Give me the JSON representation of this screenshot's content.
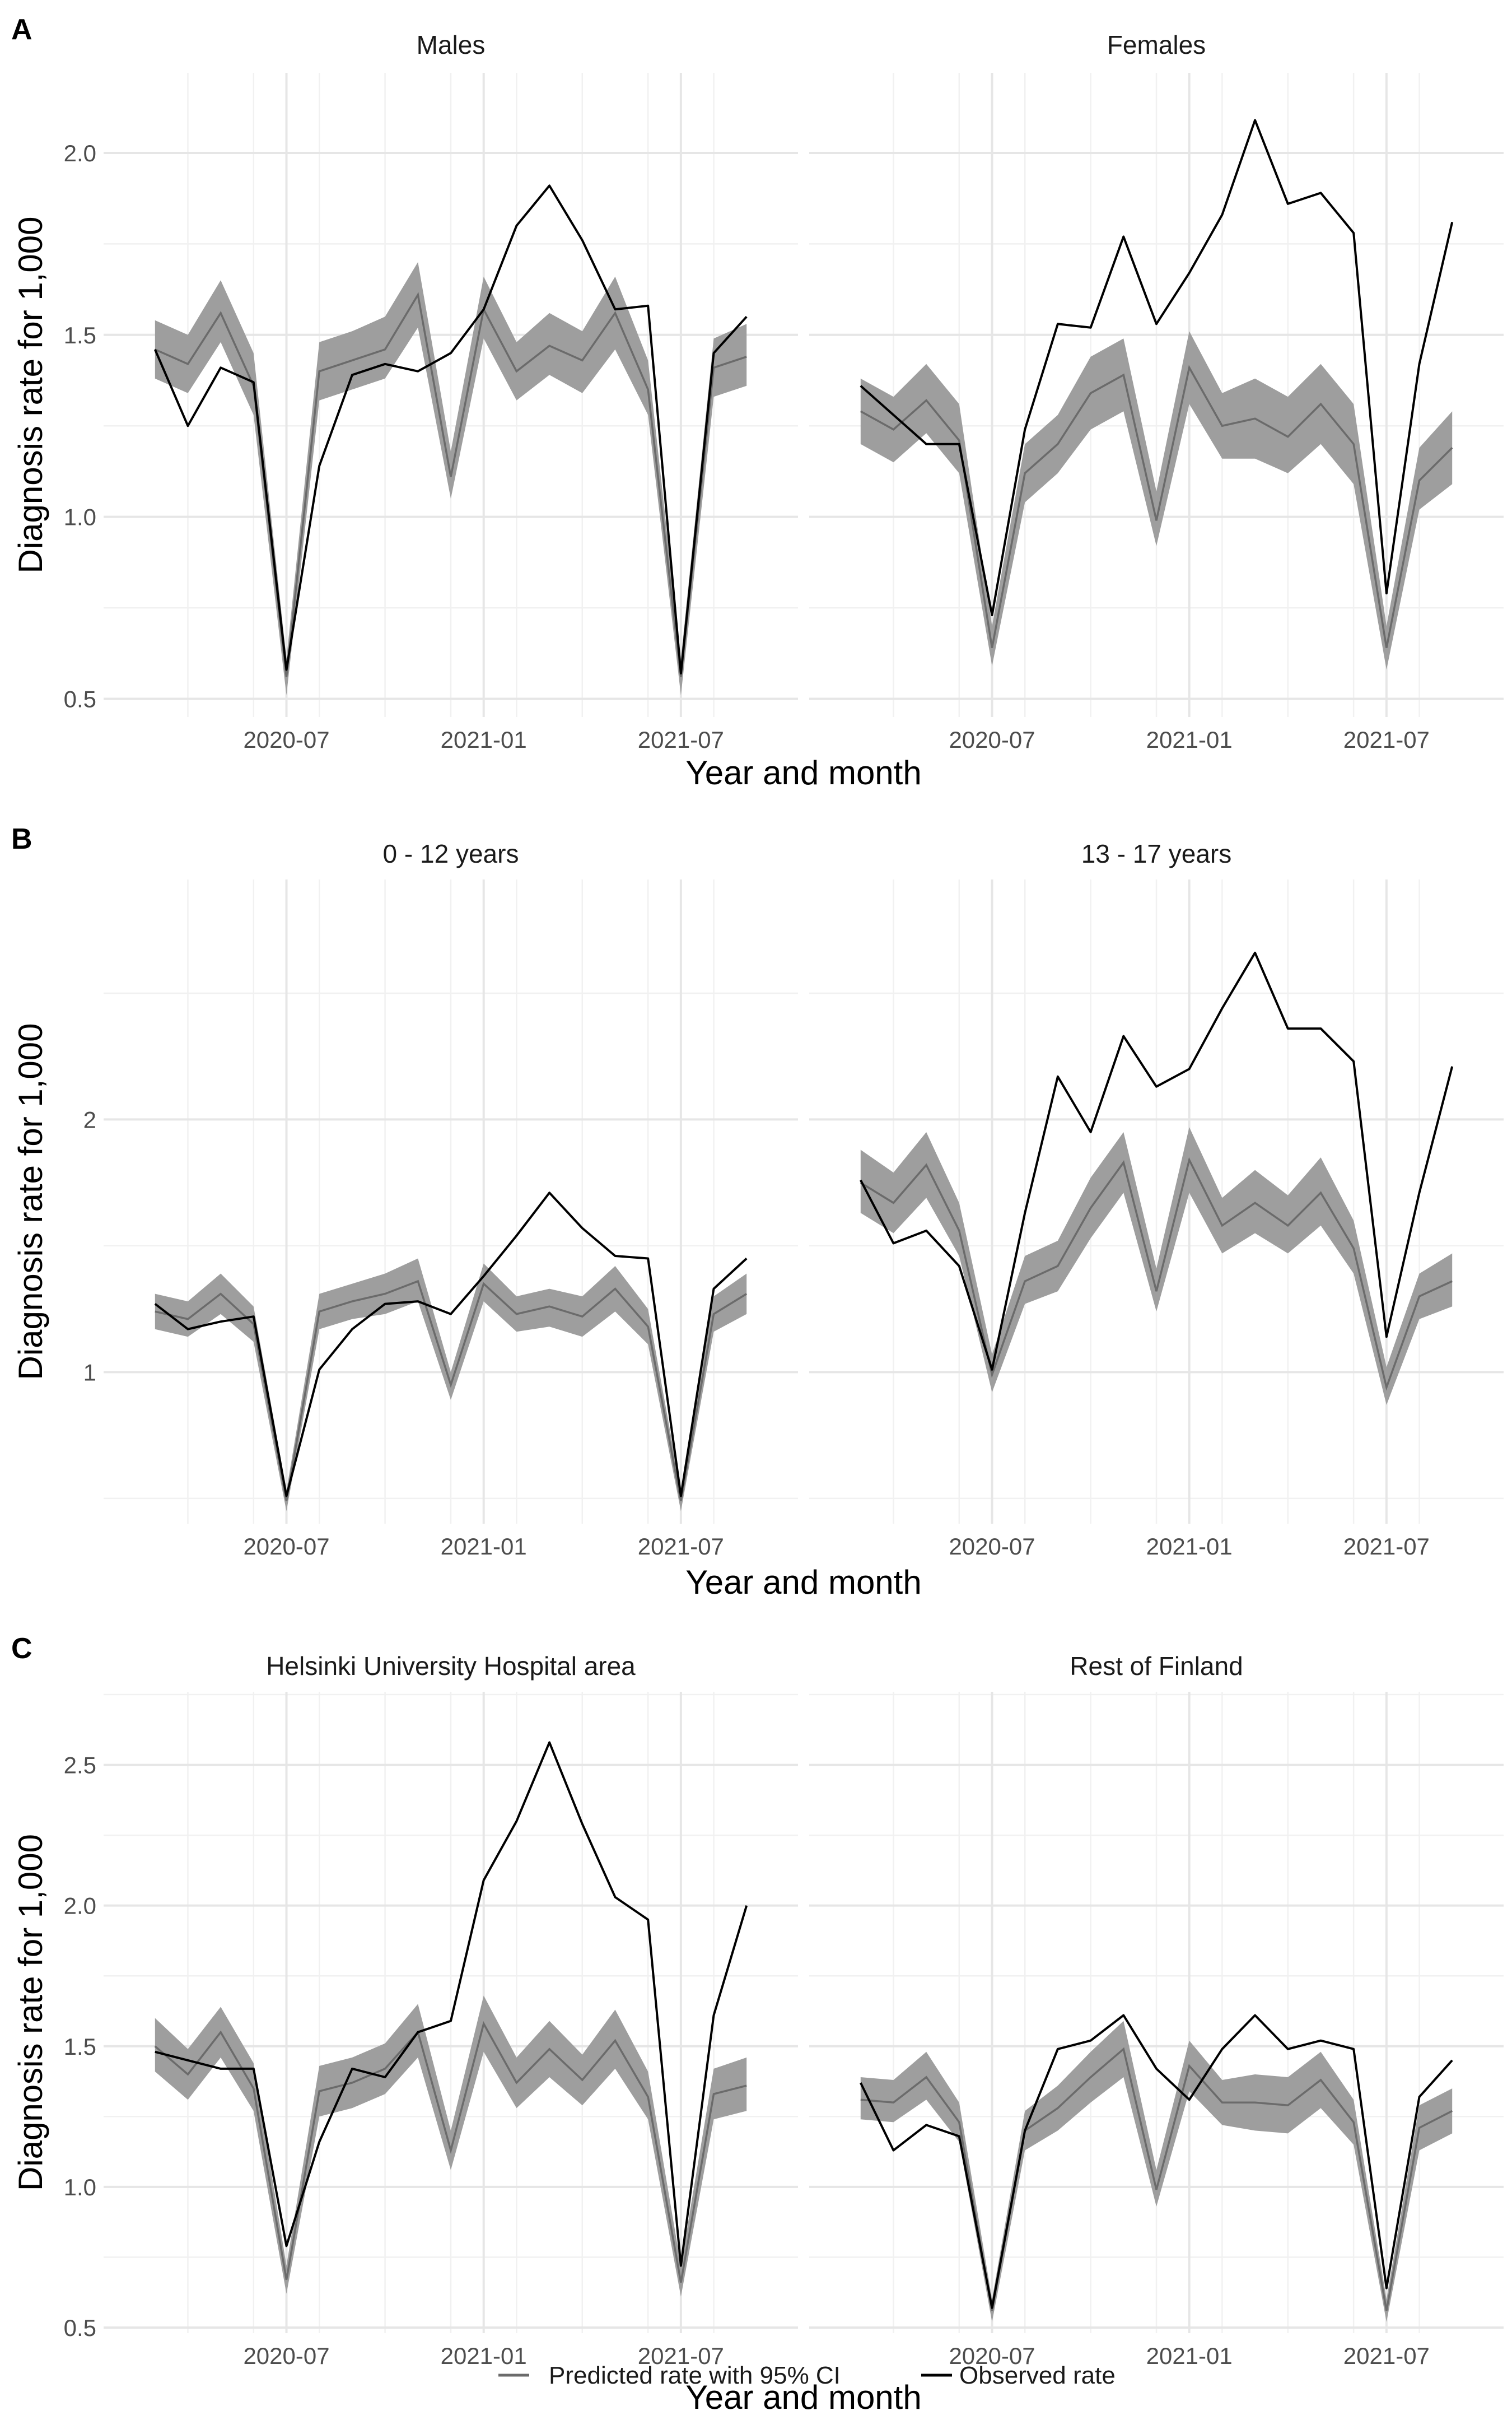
{
  "legend": {
    "predicted": "Predicted rate with 95% CI",
    "observed": "Observed rate"
  },
  "colors": {
    "predicted_line": "#6b6b6b",
    "ci_band": "#9e9e9e",
    "observed_line": "#000000"
  },
  "chart_data": [
    {
      "type": "line",
      "panel": "A",
      "xlabel": "Year and month",
      "ylabel": "Diagnosis rate for 1,000",
      "x_ticks": [
        "2020-07",
        "2021-01",
        "2021-07"
      ],
      "y_ticks": [
        0.5,
        1.0,
        1.5,
        2.0
      ],
      "y_tick_labels": [
        "0.5",
        "1.0",
        "1.5",
        "2.0"
      ],
      "ylim": [
        0.45,
        2.22
      ],
      "x": [
        "2020-03",
        "2020-04",
        "2020-05",
        "2020-06",
        "2020-07",
        "2020-08",
        "2020-09",
        "2020-10",
        "2020-11",
        "2020-12",
        "2021-01",
        "2021-02",
        "2021-03",
        "2021-04",
        "2021-05",
        "2021-06",
        "2021-07",
        "2021-08",
        "2021-09"
      ],
      "facets": [
        {
          "title": "Males",
          "predicted": [
            1.46,
            1.42,
            1.56,
            1.36,
            0.56,
            1.4,
            1.43,
            1.46,
            1.61,
            1.11,
            1.57,
            1.4,
            1.47,
            1.43,
            1.56,
            1.35,
            0.56,
            1.41,
            1.44
          ],
          "ci_lower": [
            1.38,
            1.34,
            1.48,
            1.28,
            0.51,
            1.32,
            1.35,
            1.38,
            1.52,
            1.05,
            1.49,
            1.32,
            1.39,
            1.34,
            1.46,
            1.28,
            0.51,
            1.33,
            1.36
          ],
          "ci_upper": [
            1.54,
            1.5,
            1.65,
            1.45,
            0.61,
            1.48,
            1.51,
            1.55,
            1.7,
            1.18,
            1.66,
            1.48,
            1.56,
            1.51,
            1.66,
            1.43,
            0.61,
            1.49,
            1.53
          ],
          "observed": [
            1.46,
            1.25,
            1.41,
            1.37,
            0.58,
            1.14,
            1.39,
            1.42,
            1.4,
            1.45,
            1.57,
            1.8,
            1.91,
            1.76,
            1.57,
            1.58,
            0.57,
            1.45,
            1.55
          ]
        },
        {
          "title": "Females",
          "predicted": [
            1.29,
            1.24,
            1.32,
            1.21,
            0.64,
            1.12,
            1.2,
            1.34,
            1.39,
            0.99,
            1.41,
            1.25,
            1.27,
            1.22,
            1.31,
            1.2,
            0.64,
            1.1,
            1.19
          ],
          "ci_lower": [
            1.2,
            1.15,
            1.23,
            1.12,
            0.59,
            1.04,
            1.12,
            1.24,
            1.29,
            0.92,
            1.31,
            1.16,
            1.16,
            1.12,
            1.2,
            1.09,
            0.58,
            1.02,
            1.09
          ],
          "ci_upper": [
            1.38,
            1.33,
            1.42,
            1.31,
            0.7,
            1.2,
            1.28,
            1.44,
            1.49,
            1.07,
            1.51,
            1.34,
            1.38,
            1.33,
            1.42,
            1.31,
            0.7,
            1.19,
            1.29
          ],
          "observed": [
            1.36,
            1.28,
            1.2,
            1.2,
            0.73,
            1.24,
            1.53,
            1.52,
            1.77,
            1.53,
            1.67,
            1.83,
            2.09,
            1.86,
            1.89,
            1.78,
            0.79,
            1.42,
            1.81
          ]
        }
      ]
    },
    {
      "type": "line",
      "panel": "B",
      "xlabel": "Year and month",
      "ylabel": "Diagnosis rate for 1,000",
      "x_ticks": [
        "2020-07",
        "2021-01",
        "2021-07"
      ],
      "y_ticks": [
        1,
        2
      ],
      "y_tick_labels": [
        "1",
        "2"
      ],
      "ylim": [
        0.4,
        2.95
      ],
      "x": [
        "2020-03",
        "2020-04",
        "2020-05",
        "2020-06",
        "2020-07",
        "2020-08",
        "2020-09",
        "2020-10",
        "2020-11",
        "2020-12",
        "2021-01",
        "2021-02",
        "2021-03",
        "2021-04",
        "2021-05",
        "2021-06",
        "2021-07",
        "2021-08",
        "2021-09"
      ],
      "facets": [
        {
          "title": "0 - 12 years",
          "predicted": [
            1.24,
            1.21,
            1.31,
            1.19,
            0.49,
            1.24,
            1.28,
            1.31,
            1.36,
            0.95,
            1.35,
            1.23,
            1.26,
            1.22,
            1.33,
            1.18,
            0.49,
            1.23,
            1.31
          ],
          "ci_lower": [
            1.17,
            1.14,
            1.23,
            1.12,
            0.45,
            1.17,
            1.21,
            1.23,
            1.28,
            0.89,
            1.28,
            1.16,
            1.18,
            1.14,
            1.24,
            1.11,
            0.45,
            1.16,
            1.23
          ],
          "ci_upper": [
            1.31,
            1.28,
            1.39,
            1.26,
            0.53,
            1.31,
            1.35,
            1.39,
            1.45,
            1.0,
            1.43,
            1.3,
            1.33,
            1.3,
            1.42,
            1.25,
            0.53,
            1.3,
            1.39
          ],
          "observed": [
            1.27,
            1.17,
            1.2,
            1.22,
            0.51,
            1.01,
            1.17,
            1.27,
            1.28,
            1.23,
            1.38,
            1.54,
            1.71,
            1.57,
            1.46,
            1.45,
            0.51,
            1.33,
            1.45
          ]
        },
        {
          "title": "13 - 17 years",
          "predicted": [
            1.75,
            1.67,
            1.82,
            1.56,
            0.99,
            1.36,
            1.42,
            1.65,
            1.83,
            1.32,
            1.84,
            1.58,
            1.67,
            1.58,
            1.71,
            1.49,
            0.94,
            1.3,
            1.36
          ],
          "ci_lower": [
            1.63,
            1.55,
            1.69,
            1.46,
            0.92,
            1.27,
            1.32,
            1.53,
            1.71,
            1.24,
            1.71,
            1.47,
            1.55,
            1.47,
            1.58,
            1.39,
            0.87,
            1.21,
            1.26
          ],
          "ci_upper": [
            1.88,
            1.79,
            1.95,
            1.67,
            1.07,
            1.46,
            1.52,
            1.77,
            1.95,
            1.41,
            1.97,
            1.69,
            1.8,
            1.7,
            1.85,
            1.6,
            1.02,
            1.39,
            1.47
          ],
          "observed": [
            1.76,
            1.51,
            1.56,
            1.42,
            1.01,
            1.63,
            2.17,
            1.95,
            2.33,
            2.13,
            2.2,
            2.44,
            2.66,
            2.36,
            2.36,
            2.23,
            1.14,
            1.71,
            2.21
          ]
        }
      ]
    },
    {
      "type": "line",
      "panel": "C",
      "xlabel": "Year and month",
      "ylabel": "Diagnosis rate for 1,000",
      "x_ticks": [
        "2020-07",
        "2021-01",
        "2021-07"
      ],
      "y_ticks": [
        0.5,
        1.0,
        1.5,
        2.0,
        2.5
      ],
      "y_tick_labels": [
        "0.5",
        "1.0",
        "1.5",
        "2.0",
        "2.5"
      ],
      "ylim": [
        0.48,
        2.76
      ],
      "x": [
        "2020-03",
        "2020-04",
        "2020-05",
        "2020-06",
        "2020-07",
        "2020-08",
        "2020-09",
        "2020-10",
        "2020-11",
        "2020-12",
        "2021-01",
        "2021-02",
        "2021-03",
        "2021-04",
        "2021-05",
        "2021-06",
        "2021-07",
        "2021-08",
        "2021-09"
      ],
      "facets": [
        {
          "title": "Helsinki University Hospital area",
          "predicted": [
            1.5,
            1.4,
            1.55,
            1.35,
            0.67,
            1.34,
            1.37,
            1.42,
            1.55,
            1.13,
            1.58,
            1.37,
            1.49,
            1.38,
            1.52,
            1.32,
            0.66,
            1.33,
            1.36
          ],
          "ci_lower": [
            1.41,
            1.31,
            1.46,
            1.27,
            0.62,
            1.25,
            1.28,
            1.33,
            1.46,
            1.06,
            1.48,
            1.28,
            1.39,
            1.29,
            1.42,
            1.24,
            0.61,
            1.24,
            1.27
          ],
          "ci_upper": [
            1.6,
            1.49,
            1.64,
            1.44,
            0.72,
            1.43,
            1.46,
            1.51,
            1.65,
            1.2,
            1.68,
            1.46,
            1.59,
            1.47,
            1.63,
            1.41,
            0.72,
            1.42,
            1.46
          ],
          "observed": [
            1.48,
            1.45,
            1.42,
            1.42,
            0.79,
            1.16,
            1.42,
            1.39,
            1.55,
            1.59,
            2.09,
            2.3,
            2.58,
            2.29,
            2.03,
            1.95,
            0.72,
            1.61,
            2.0
          ]
        },
        {
          "title": "Rest of Finland",
          "predicted": [
            1.31,
            1.3,
            1.39,
            1.23,
            0.56,
            1.2,
            1.28,
            1.39,
            1.49,
            0.99,
            1.43,
            1.3,
            1.3,
            1.29,
            1.38,
            1.23,
            0.56,
            1.21,
            1.27
          ],
          "ci_lower": [
            1.24,
            1.23,
            1.31,
            1.16,
            0.52,
            1.13,
            1.2,
            1.3,
            1.39,
            0.93,
            1.34,
            1.22,
            1.2,
            1.19,
            1.28,
            1.15,
            0.52,
            1.13,
            1.19
          ],
          "ci_upper": [
            1.39,
            1.38,
            1.48,
            1.3,
            0.6,
            1.27,
            1.36,
            1.48,
            1.59,
            1.06,
            1.52,
            1.38,
            1.4,
            1.39,
            1.48,
            1.31,
            0.6,
            1.29,
            1.35
          ],
          "observed": [
            1.37,
            1.13,
            1.22,
            1.18,
            0.57,
            1.2,
            1.49,
            1.52,
            1.61,
            1.42,
            1.31,
            1.49,
            1.61,
            1.49,
            1.52,
            1.49,
            0.64,
            1.32,
            1.45
          ]
        }
      ]
    }
  ]
}
